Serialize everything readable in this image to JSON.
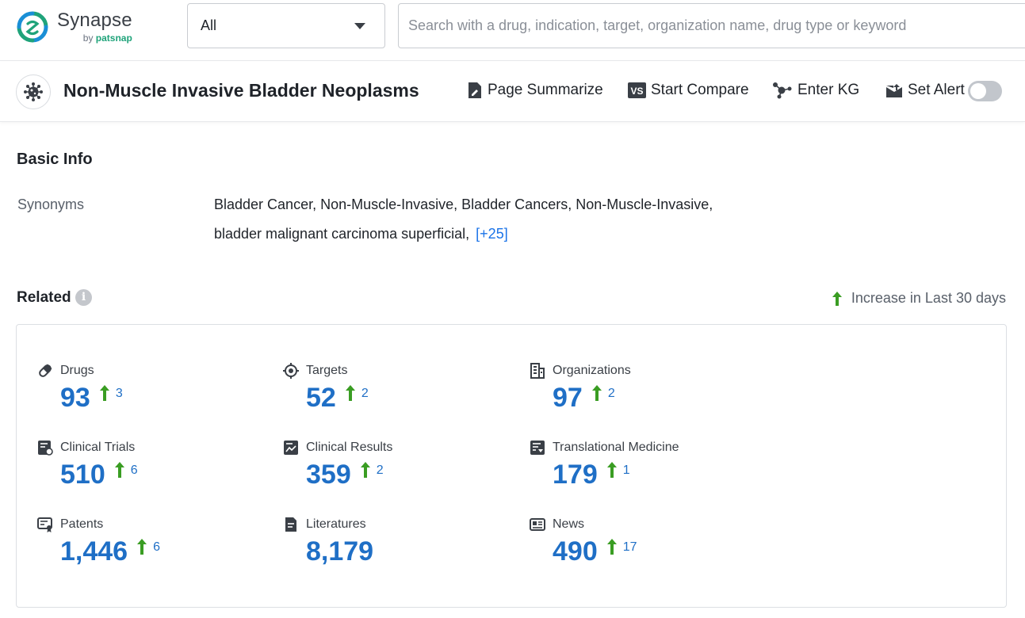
{
  "brand": {
    "name": "Synapse",
    "by": "by",
    "by_brand": "patsnap"
  },
  "search": {
    "scope": "All",
    "placeholder": "Search with a drug, indication, target, organization name, drug type or keyword"
  },
  "page": {
    "title": "Non-Muscle Invasive Bladder Neoplasms"
  },
  "actions": {
    "summarize": "Page Summarize",
    "compare": "Start Compare",
    "kg": "Enter KG",
    "alert": "Set Alert",
    "alert_on": false
  },
  "basic_info": {
    "heading": "Basic Info",
    "synonyms_label": "Synonyms",
    "line1": "Bladder Cancer, Non-Muscle-Invasive,  Bladder Cancers, Non-Muscle-Invasive,",
    "line2": "bladder malignant carcinoma superficial,",
    "more": "[+25]"
  },
  "related": {
    "heading": "Related",
    "legend": "Increase in Last 30 days",
    "items": [
      {
        "label": "Drugs",
        "icon": "pill-icon",
        "value": "93",
        "delta": "3"
      },
      {
        "label": "Targets",
        "icon": "target-icon",
        "value": "52",
        "delta": "2"
      },
      {
        "label": "Organizations",
        "icon": "building-icon",
        "value": "97",
        "delta": "2"
      },
      {
        "label": "Clinical Trials",
        "icon": "clinical-trial-icon",
        "value": "510",
        "delta": "6"
      },
      {
        "label": "Clinical Results",
        "icon": "clinical-result-icon",
        "value": "359",
        "delta": "2"
      },
      {
        "label": "Translational Medicine",
        "icon": "translational-icon",
        "value": "179",
        "delta": "1"
      },
      {
        "label": "Patents",
        "icon": "patent-icon",
        "value": "1,446",
        "delta": "6"
      },
      {
        "label": "Literatures",
        "icon": "document-icon",
        "value": "8,179",
        "delta": ""
      },
      {
        "label": "News",
        "icon": "news-icon",
        "value": "490",
        "delta": "17"
      }
    ]
  },
  "colors": {
    "accent": "#1f6fc6",
    "increase": "#3a9d23",
    "link": "#1a73e8"
  }
}
